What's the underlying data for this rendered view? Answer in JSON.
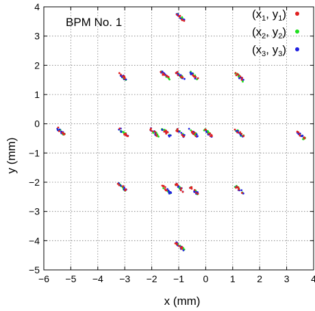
{
  "chart_data": {
    "type": "scatter",
    "title": "BPM No. 1",
    "xlabel": "x (mm)",
    "ylabel": "y (mm)",
    "xlim": [
      -6,
      4
    ],
    "ylim": [
      -5,
      4
    ],
    "x_ticks": [
      -6,
      -5,
      -4,
      -3,
      -2,
      -1,
      0,
      1,
      2,
      3,
      4
    ],
    "y_ticks": [
      -5,
      -4,
      -3,
      -2,
      -1,
      0,
      1,
      2,
      3,
      4
    ],
    "x_tick_labels": [
      "−6",
      "−5",
      "−4",
      "−3",
      "−2",
      "−1",
      "0",
      "1",
      "2",
      "3",
      "4"
    ],
    "y_tick_labels": [
      "−5",
      "−4",
      "−3",
      "−2",
      "−1",
      "0",
      "1",
      "2",
      "3",
      "4"
    ],
    "grid": true,
    "legend_position": "top-right",
    "series": [
      {
        "name": "(x1, y1)",
        "label_base": [
          "x",
          "y"
        ],
        "label_sub": "1",
        "color": "#e02020"
      },
      {
        "name": "(x2, y2)",
        "label_base": [
          "x",
          "y"
        ],
        "label_sub": "2",
        "color": "#20e020"
      },
      {
        "name": "(x3, y3)",
        "label_base": [
          "x",
          "y"
        ],
        "label_sub": "3",
        "color": "#2020e0"
      }
    ],
    "clusters": [
      {
        "x": -0.95,
        "y": 3.65
      },
      {
        "x": -3.05,
        "y": 1.6
      },
      {
        "x": -1.5,
        "y": 1.65
      },
      {
        "x": -0.95,
        "y": 1.65
      },
      {
        "x": -0.45,
        "y": 1.65
      },
      {
        "x": 1.25,
        "y": 1.6
      },
      {
        "x": -5.35,
        "y": -0.28
      },
      {
        "x": -3.05,
        "y": -0.3
      },
      {
        "x": -1.9,
        "y": -0.3
      },
      {
        "x": -1.45,
        "y": -0.3
      },
      {
        "x": -0.95,
        "y": -0.3
      },
      {
        "x": -0.45,
        "y": -0.3
      },
      {
        "x": 0.1,
        "y": -0.32
      },
      {
        "x": 1.25,
        "y": -0.32
      },
      {
        "x": 3.5,
        "y": -0.38
      },
      {
        "x": -3.1,
        "y": -2.15
      },
      {
        "x": -1.45,
        "y": -2.25
      },
      {
        "x": -0.95,
        "y": -2.2
      },
      {
        "x": -0.4,
        "y": -2.3
      },
      {
        "x": 1.25,
        "y": -2.25
      },
      {
        "x": -0.95,
        "y": -4.2
      }
    ]
  }
}
